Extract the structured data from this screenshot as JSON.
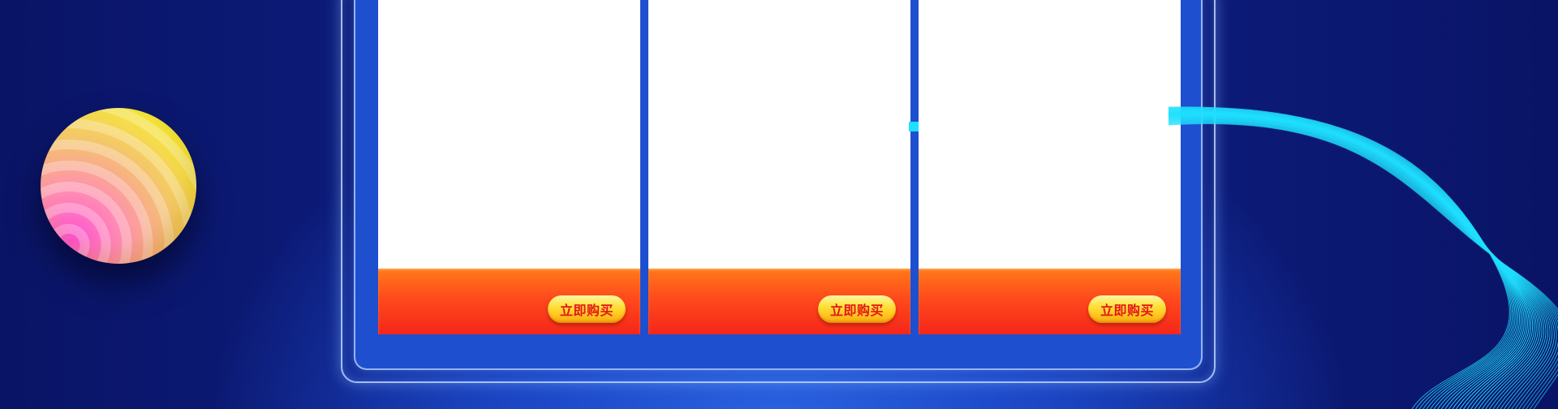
{
  "products": [
    {
      "buy_label": "立即购买"
    },
    {
      "buy_label": "立即购买"
    },
    {
      "buy_label": "立即购买"
    }
  ],
  "colors": {
    "background_dark": "#0a1466",
    "panel_blue": "#1e4fcf",
    "footer_orange": "#ff4a1c",
    "button_yellow": "#ffe03a",
    "button_text_red": "#e2151a",
    "wave_cyan": "#1fe0ff"
  },
  "decorations": {
    "ball": "striped-gradient-ball-icon",
    "wave": "cyan-line-wave-icon"
  }
}
